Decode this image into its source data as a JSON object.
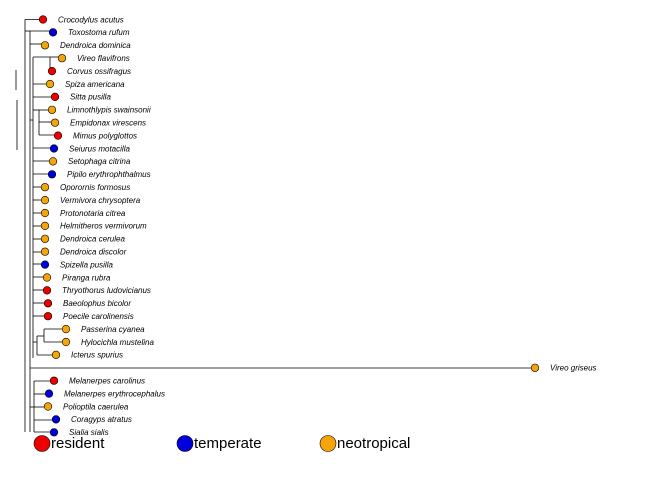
{
  "colors": {
    "resident": "#ee0000",
    "temperate": "#0000dd",
    "neotropical": "#f5a50a"
  },
  "tips": [
    {
      "name": "Crocodylus acutus",
      "status": "resident"
    },
    {
      "name": "Toxostoma rufum",
      "status": "temperate"
    },
    {
      "name": "Dendroica dominica",
      "status": "neotropical"
    },
    {
      "name": "Vireo flavifrons",
      "status": "neotropical"
    },
    {
      "name": "Corvus ossifragus",
      "status": "resident"
    },
    {
      "name": "Spiza americana",
      "status": "neotropical"
    },
    {
      "name": "Sitta pusilla",
      "status": "resident"
    },
    {
      "name": "Limnothlypis swainsonii",
      "status": "neotropical"
    },
    {
      "name": "Empidonax virescens",
      "status": "neotropical"
    },
    {
      "name": "Mimus polyglottos",
      "status": "resident"
    },
    {
      "name": "Seiurus motacilla",
      "status": "temperate"
    },
    {
      "name": "Setophaga citrina",
      "status": "neotropical"
    },
    {
      "name": "Pipilo erythrophthalmus",
      "status": "temperate"
    },
    {
      "name": "Oporornis formosus",
      "status": "neotropical"
    },
    {
      "name": "Vermivora chrysoptera",
      "status": "neotropical"
    },
    {
      "name": "Protonotaria citrea",
      "status": "neotropical"
    },
    {
      "name": "Helmitheros vermivorum",
      "status": "neotropical"
    },
    {
      "name": "Dendroica cerulea",
      "status": "neotropical"
    },
    {
      "name": "Dendroica discolor",
      "status": "neotropical"
    },
    {
      "name": "Spizella pusilla",
      "status": "temperate"
    },
    {
      "name": "Piranga rubra",
      "status": "neotropical"
    },
    {
      "name": "Thryothorus ludovicianus",
      "status": "resident"
    },
    {
      "name": "Baeolophus bicolor",
      "status": "resident"
    },
    {
      "name": "Poecile carolinensis",
      "status": "resident"
    },
    {
      "name": "Passerina cyanea",
      "status": "neotropical"
    },
    {
      "name": "Hylocichla mustelina",
      "status": "neotropical"
    },
    {
      "name": "Icterus spurius",
      "status": "neotropical"
    },
    {
      "name": "Vireo griseus",
      "status": "neotropical"
    },
    {
      "name": "Melanerpes carolinus",
      "status": "resident"
    },
    {
      "name": "Melanerpes erythrocephalus",
      "status": "temperate"
    },
    {
      "name": "Polioptila caerulea",
      "status": "neotropical"
    },
    {
      "name": "Coragyps atratus",
      "status": "temperate"
    },
    {
      "name": "Sialia sialis",
      "status": "temperate"
    }
  ],
  "legend": [
    {
      "label": "resident",
      "status": "resident"
    },
    {
      "label": "temperate",
      "status": "temperate"
    },
    {
      "label": "neotropical",
      "status": "neotropical"
    }
  ]
}
